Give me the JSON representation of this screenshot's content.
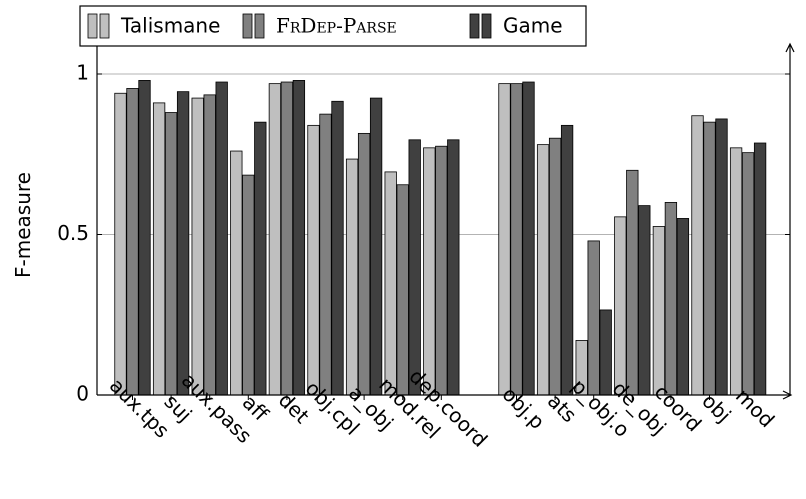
{
  "chart_data": {
    "type": "bar",
    "title": "",
    "xlabel": "",
    "ylabel": "F-measure",
    "ylim": [
      0,
      1.05
    ],
    "yticks": [
      0,
      0.5,
      1
    ],
    "ytick_labels": [
      "0",
      "0.5",
      "1"
    ],
    "grid": "horizontal",
    "legend_position": "top-left",
    "groups": [
      [
        "aux.tps",
        "suj",
        "aux.pass",
        "aff",
        "det",
        "obj.cpl",
        "a_obj",
        "mod.rel",
        "dep.coord"
      ],
      [
        "obj.p",
        "ats",
        "p_obj.o",
        "de_obj",
        "coord",
        "obj",
        "mod"
      ]
    ],
    "categories": [
      "aux.tps",
      "suj",
      "aux.pass",
      "aff",
      "det",
      "obj.cpl",
      "a_obj",
      "mod.rel",
      "dep.coord",
      "obj.p",
      "ats",
      "p_obj.o",
      "de_obj",
      "coord",
      "obj",
      "mod"
    ],
    "series": [
      {
        "name": "Talismane",
        "color": "#bfbfbf",
        "values": [
          0.94,
          0.91,
          0.925,
          0.76,
          0.97,
          0.84,
          0.735,
          0.695,
          0.77,
          0.97,
          0.78,
          0.17,
          0.555,
          0.525,
          0.87,
          0.77
        ]
      },
      {
        "name": "FrDep-Parse",
        "color": "#808080",
        "values": [
          0.955,
          0.88,
          0.935,
          0.685,
          0.975,
          0.875,
          0.815,
          0.655,
          0.775,
          0.97,
          0.8,
          0.48,
          0.7,
          0.6,
          0.85,
          0.755
        ]
      },
      {
        "name": "Game",
        "color": "#404040",
        "values": [
          0.98,
          0.945,
          0.975,
          0.85,
          0.98,
          0.915,
          0.925,
          0.795,
          0.795,
          0.975,
          0.84,
          0.265,
          0.59,
          0.55,
          0.86,
          0.785
        ]
      }
    ]
  }
}
